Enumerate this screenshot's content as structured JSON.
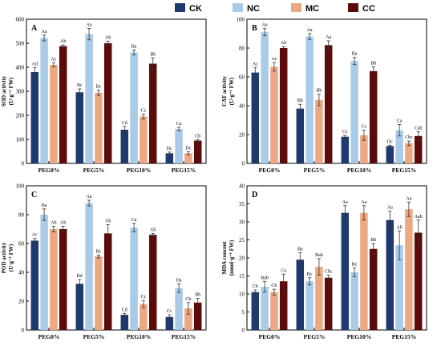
{
  "legend": [
    {
      "name": "CK",
      "color": "#1f3a6e"
    },
    {
      "name": "NC",
      "color": "#a9cbe8"
    },
    {
      "name": "MC",
      "color": "#eba882"
    },
    {
      "name": "CC",
      "color": "#5c0a0a"
    }
  ],
  "chart_data": [
    {
      "type": "bar",
      "panel": "A",
      "ylabel_line1": "SOD activity",
      "ylabel_line2": "(U·g⁻¹ FW)",
      "ylim": [
        0,
        600
      ],
      "yticks": [
        0,
        100,
        200,
        300,
        400,
        500,
        600
      ],
      "categories": [
        "PEG0%",
        "PEG5%",
        "PEG10%",
        "PEG15%"
      ],
      "series": [
        {
          "name": "CK",
          "values": [
            380,
            296,
            140,
            42
          ],
          "errors": [
            18,
            14,
            14,
            5
          ],
          "labels": [
            "Ad",
            "Bc",
            "Cd",
            "Dc"
          ]
        },
        {
          "name": "NC",
          "values": [
            522,
            538,
            462,
            143
          ],
          "errors": [
            12,
            24,
            10,
            7
          ],
          "labels": [
            "Aa",
            "Aa",
            "Ba",
            "Ca"
          ]
        },
        {
          "name": "MC",
          "values": [
            410,
            294,
            195,
            42
          ],
          "errors": [
            8,
            11,
            10,
            6
          ],
          "labels": [
            "Ac",
            "Bc",
            "Cc",
            "Dc"
          ]
        },
        {
          "name": "CC",
          "values": [
            488,
            500,
            415,
            95
          ],
          "errors": [
            5,
            9,
            24,
            4
          ],
          "labels": [
            "Ab",
            "Ab",
            "Bb",
            "Cb"
          ]
        }
      ]
    },
    {
      "type": "bar",
      "panel": "B",
      "ylabel_line1": "CAT activity",
      "ylabel_line2": "(U·g⁻¹ FW)",
      "ylim": [
        0,
        100
      ],
      "yticks": [
        0,
        20,
        40,
        60,
        80,
        100
      ],
      "categories": [
        "PEG0%",
        "PEG5%",
        "PEG10%",
        "PEG15%"
      ],
      "series": [
        {
          "name": "CK",
          "values": [
            63,
            38,
            18.5,
            12
          ],
          "errors": [
            3.5,
            3,
            1,
            0.6
          ],
          "labels": [
            "Ac",
            "Bb",
            "Cc",
            "Dc"
          ]
        },
        {
          "name": "NC",
          "values": [
            91,
            88,
            71,
            23
          ],
          "errors": [
            2.5,
            2,
            2.5,
            4
          ],
          "labels": [
            "Aa",
            "Aa",
            "Ba",
            "Ca"
          ]
        },
        {
          "name": "MC",
          "values": [
            67,
            44,
            19.5,
            14
          ],
          "errors": [
            3,
            4,
            3.5,
            1.5
          ],
          "labels": [
            "Ac",
            "Bb",
            "Cc",
            "Cbc"
          ]
        },
        {
          "name": "CC",
          "values": [
            80,
            82,
            64,
            19
          ],
          "errors": [
            1,
            3,
            3,
            3
          ],
          "labels": [
            "Ab",
            "Aa",
            "Bb",
            "Cab"
          ]
        }
      ]
    },
    {
      "type": "bar",
      "panel": "C",
      "ylabel_line1": "POD activity",
      "ylabel_line2": "(U·g⁻¹ FW)",
      "ylim": [
        0,
        100
      ],
      "yticks": [
        0,
        20,
        40,
        60,
        80,
        100
      ],
      "categories": [
        "PEG0%",
        "PEG5%",
        "PEG10%",
        "PEG15%"
      ],
      "series": [
        {
          "name": "CK",
          "values": [
            62,
            32,
            10.5,
            9
          ],
          "errors": [
            1.5,
            3,
            1,
            1.5
          ],
          "labels": [
            "Ac",
            "Bd",
            "Cd",
            "Cc"
          ]
        },
        {
          "name": "NC",
          "values": [
            80,
            88,
            71,
            29
          ],
          "errors": [
            4,
            2,
            3,
            3
          ],
          "labels": [
            "Ba",
            "Aa",
            "Ca",
            "Da"
          ]
        },
        {
          "name": "MC",
          "values": [
            70,
            51,
            18,
            15
          ],
          "errors": [
            2,
            1,
            2.5,
            4
          ],
          "labels": [
            "Ab",
            "Bc",
            "Cc",
            "Cb"
          ]
        },
        {
          "name": "CC",
          "values": [
            70,
            67,
            66,
            19
          ],
          "errors": [
            2,
            6,
            1,
            3
          ],
          "labels": [
            "Ab",
            "Ab",
            "Ab",
            "Bb"
          ]
        }
      ]
    },
    {
      "type": "bar",
      "panel": "D",
      "ylabel_line1": "MDA concent",
      "ylabel_line2": "(nmol·g⁻¹ FW)",
      "ylim": [
        0,
        40
      ],
      "yticks": [
        0,
        5,
        10,
        15,
        20,
        25,
        30,
        35,
        40
      ],
      "categories": [
        "PEG0%",
        "PEG5%",
        "PEG10%",
        "PEG15%"
      ],
      "series": [
        {
          "name": "CK",
          "values": [
            10.5,
            19.5,
            32.5,
            30.5
          ],
          "errors": [
            0.6,
            2,
            2,
            2.5
          ],
          "labels": [
            "Cb",
            "Ba",
            "Aa",
            "Aa"
          ]
        },
        {
          "name": "NC",
          "values": [
            12,
            13.5,
            16,
            23.5
          ],
          "errors": [
            1.5,
            1,
            1.2,
            4
          ],
          "labels": [
            "Bab",
            "Bc",
            "Bc",
            "Ab"
          ]
        },
        {
          "name": "MC",
          "values": [
            10.5,
            17.5,
            32.5,
            33.5
          ],
          "errors": [
            0.8,
            2.3,
            2,
            2
          ],
          "labels": [
            "Cb",
            "Bab",
            "Aa",
            "Aa"
          ]
        },
        {
          "name": "CC",
          "values": [
            13.5,
            14.5,
            22.5,
            27
          ],
          "errors": [
            2,
            0.7,
            1.5,
            3.5
          ],
          "labels": [
            "Ca",
            "Cbc",
            "Bb",
            "Aab"
          ]
        }
      ]
    }
  ]
}
